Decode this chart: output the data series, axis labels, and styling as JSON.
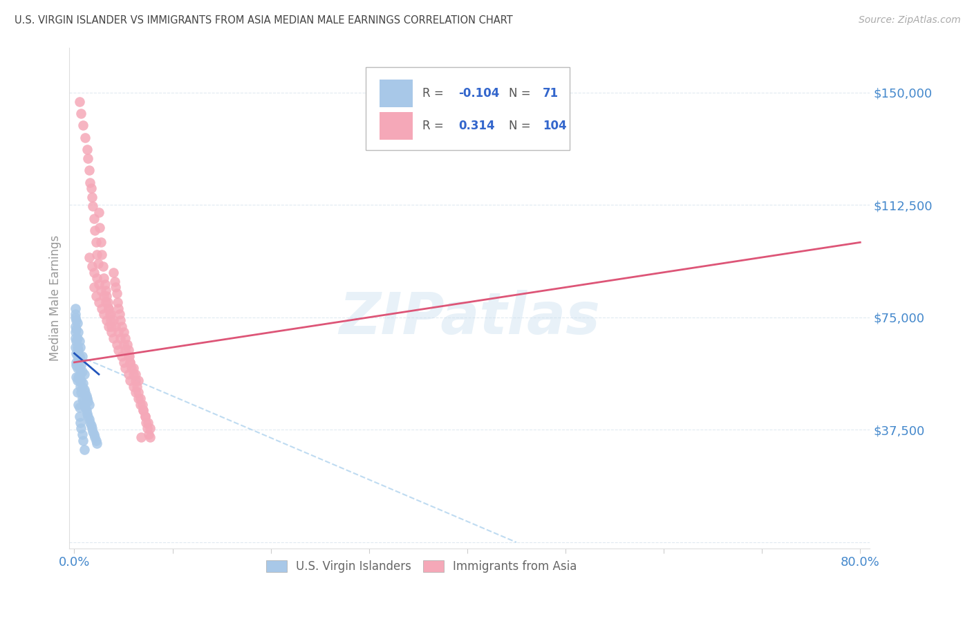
{
  "title": "U.S. VIRGIN ISLANDER VS IMMIGRANTS FROM ASIA MEDIAN MALE EARNINGS CORRELATION CHART",
  "source": "Source: ZipAtlas.com",
  "ylabel": "Median Male Earnings",
  "xlim": [
    -0.005,
    0.81
  ],
  "ylim": [
    -2000,
    165000
  ],
  "yticks": [
    0,
    37500,
    75000,
    112500,
    150000
  ],
  "ytick_labels": [
    "",
    "$37,500",
    "$75,000",
    "$112,500",
    "$150,000"
  ],
  "watermark": "ZIPatlas",
  "blue_color": "#a8c8e8",
  "pink_color": "#f5a8b8",
  "blue_line_color": "#2255bb",
  "pink_line_color": "#dd5577",
  "dashed_line_color": "#b8d8f0",
  "grid_color": "#dde8f0",
  "title_color": "#444444",
  "axis_label_color": "#999999",
  "tick_color": "#4488cc",
  "blue_scatter_x": [
    0.001,
    0.001,
    0.001,
    0.001,
    0.002,
    0.002,
    0.002,
    0.002,
    0.002,
    0.003,
    0.003,
    0.003,
    0.003,
    0.003,
    0.004,
    0.004,
    0.004,
    0.004,
    0.005,
    0.005,
    0.005,
    0.005,
    0.006,
    0.006,
    0.006,
    0.006,
    0.007,
    0.007,
    0.007,
    0.008,
    0.008,
    0.008,
    0.008,
    0.009,
    0.009,
    0.01,
    0.01,
    0.01,
    0.011,
    0.011,
    0.012,
    0.012,
    0.013,
    0.013,
    0.014,
    0.014,
    0.015,
    0.015,
    0.016,
    0.017,
    0.018,
    0.019,
    0.02,
    0.021,
    0.022,
    0.023,
    0.001,
    0.001,
    0.001,
    0.002,
    0.002,
    0.003,
    0.003,
    0.004,
    0.005,
    0.005,
    0.006,
    0.007,
    0.008,
    0.009,
    0.01
  ],
  "blue_scatter_y": [
    65000,
    68000,
    70000,
    72000,
    60000,
    63000,
    67000,
    71000,
    74000,
    58000,
    62000,
    65000,
    68000,
    73000,
    55000,
    60000,
    64000,
    70000,
    54000,
    58000,
    62000,
    67000,
    52000,
    56000,
    61000,
    65000,
    50000,
    54000,
    59000,
    48000,
    52000,
    57000,
    62000,
    47000,
    53000,
    46000,
    51000,
    56000,
    45000,
    50000,
    44000,
    49000,
    43000,
    48000,
    42000,
    47000,
    41000,
    46000,
    40000,
    39000,
    38000,
    37000,
    36000,
    35000,
    34000,
    33000,
    75000,
    76000,
    78000,
    55000,
    59000,
    50000,
    54000,
    46000,
    42000,
    45000,
    40000,
    38000,
    36000,
    34000,
    31000
  ],
  "pink_scatter_x": [
    0.005,
    0.007,
    0.009,
    0.011,
    0.013,
    0.014,
    0.015,
    0.016,
    0.017,
    0.018,
    0.019,
    0.02,
    0.021,
    0.022,
    0.023,
    0.024,
    0.025,
    0.026,
    0.027,
    0.028,
    0.029,
    0.03,
    0.031,
    0.032,
    0.033,
    0.034,
    0.035,
    0.036,
    0.037,
    0.038,
    0.04,
    0.041,
    0.042,
    0.043,
    0.044,
    0.045,
    0.046,
    0.047,
    0.048,
    0.05,
    0.052,
    0.054,
    0.055,
    0.056,
    0.057,
    0.058,
    0.06,
    0.062,
    0.064,
    0.065,
    0.067,
    0.069,
    0.07,
    0.072,
    0.073,
    0.074,
    0.076,
    0.077,
    0.02,
    0.022,
    0.025,
    0.028,
    0.03,
    0.033,
    0.035,
    0.038,
    0.04,
    0.043,
    0.045,
    0.048,
    0.05,
    0.052,
    0.055,
    0.057,
    0.06,
    0.062,
    0.065,
    0.067,
    0.07,
    0.072,
    0.075,
    0.077,
    0.015,
    0.018,
    0.02,
    0.023,
    0.025,
    0.027,
    0.03,
    0.032,
    0.035,
    0.037,
    0.04,
    0.042,
    0.045,
    0.047,
    0.05,
    0.052,
    0.055,
    0.057,
    0.06,
    0.062,
    0.065,
    0.068
  ],
  "pink_scatter_y": [
    147000,
    143000,
    139000,
    135000,
    131000,
    128000,
    124000,
    120000,
    118000,
    115000,
    112000,
    108000,
    104000,
    100000,
    96000,
    93000,
    110000,
    105000,
    100000,
    96000,
    92000,
    88000,
    86000,
    84000,
    82000,
    80000,
    78000,
    76000,
    74000,
    72000,
    90000,
    87000,
    85000,
    83000,
    80000,
    78000,
    76000,
    74000,
    72000,
    70000,
    68000,
    66000,
    64000,
    62000,
    60000,
    58000,
    56000,
    54000,
    52000,
    50000,
    48000,
    46000,
    44000,
    42000,
    40000,
    38000,
    36000,
    35000,
    85000,
    82000,
    80000,
    78000,
    76000,
    74000,
    72000,
    70000,
    68000,
    66000,
    64000,
    62000,
    60000,
    58000,
    56000,
    54000,
    52000,
    50000,
    48000,
    46000,
    44000,
    42000,
    40000,
    38000,
    95000,
    92000,
    90000,
    88000,
    86000,
    84000,
    82000,
    80000,
    78000,
    76000,
    74000,
    72000,
    70000,
    68000,
    66000,
    64000,
    62000,
    60000,
    58000,
    56000,
    54000,
    35000
  ],
  "blue_line_x0": 0.0,
  "blue_line_x1": 0.025,
  "blue_line_y0": 63000,
  "blue_line_y1": 56000,
  "pink_line_x0": 0.0,
  "pink_line_x1": 0.8,
  "pink_line_y0": 60000,
  "pink_line_y1": 100000,
  "dash_line_x0": 0.005,
  "dash_line_x1": 0.45,
  "dash_line_y0": 62000,
  "dash_line_y1": 0
}
